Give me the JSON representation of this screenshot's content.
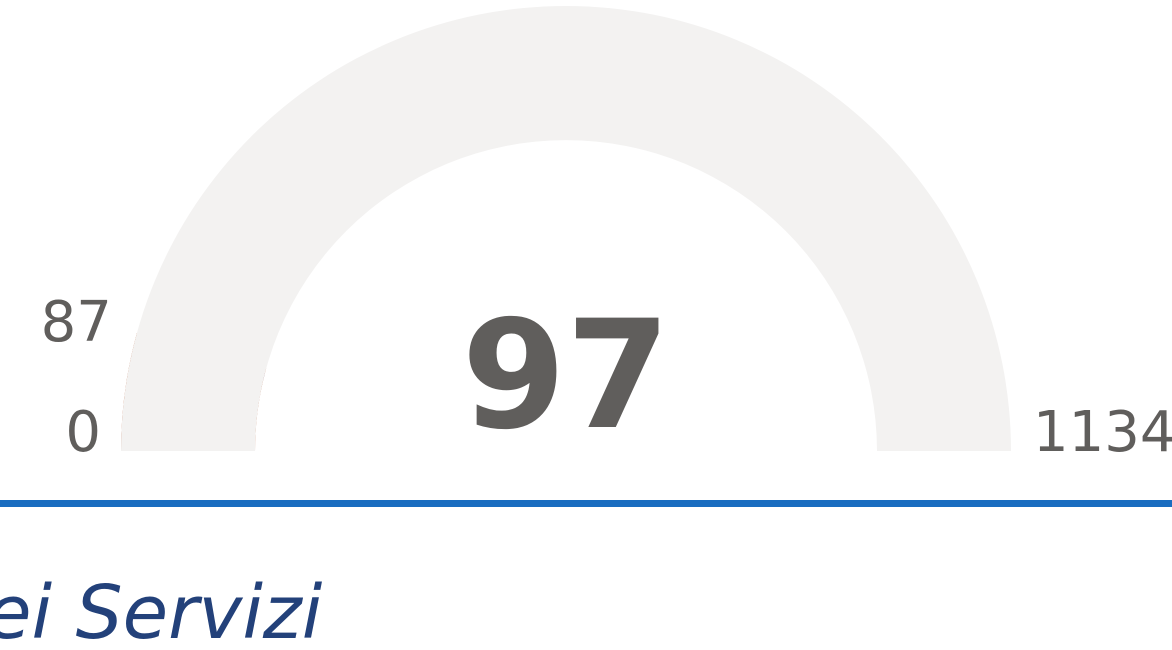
{
  "chart_data": {
    "type": "gauge",
    "value": 97,
    "min": 0,
    "max": 1134,
    "target": 87,
    "track_color": "#f3f2f1",
    "fill_color": "#b0532a",
    "target_color": "#1c2a8f"
  },
  "section": {
    "title": "ei Servizi"
  }
}
